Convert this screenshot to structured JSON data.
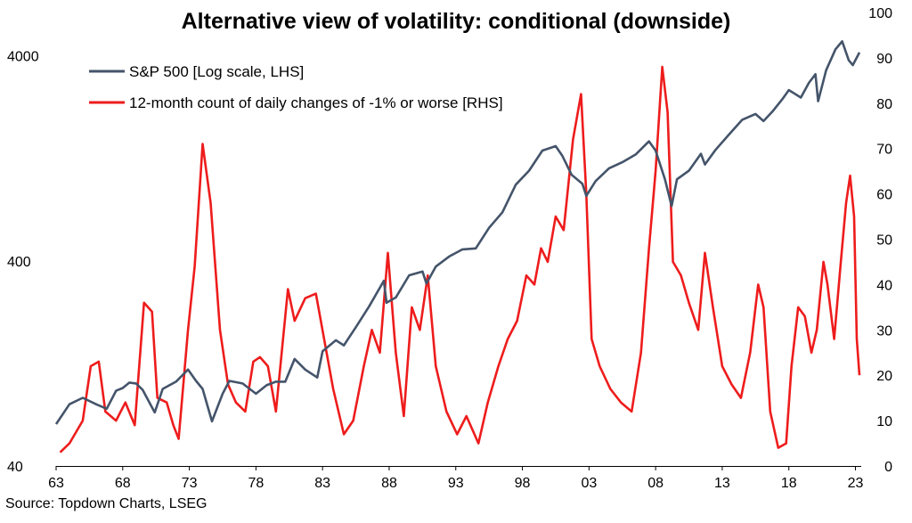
{
  "chart_data": {
    "type": "line",
    "title": "Alternative view of volatility: conditional (downside)",
    "source": "Source: Topdown Charts, LSEG",
    "x_axis": {
      "range": [
        1963,
        2023.3
      ],
      "ticks": [
        1963,
        1968,
        1973,
        1978,
        1983,
        1988,
        1993,
        1998,
        2003,
        2008,
        2013,
        2018,
        2023
      ],
      "tick_labels": [
        "63",
        "68",
        "73",
        "78",
        "83",
        "88",
        "93",
        "98",
        "03",
        "08",
        "13",
        "18",
        "23"
      ]
    },
    "y_left": {
      "scale": "log",
      "range": [
        40,
        6500
      ],
      "ticks": [
        40,
        400,
        4000
      ],
      "tick_labels": [
        "40",
        "400",
        "4000"
      ]
    },
    "y_right": {
      "scale": "linear",
      "range": [
        0,
        100
      ],
      "ticks": [
        0,
        10,
        20,
        30,
        40,
        50,
        60,
        70,
        80,
        90,
        100
      ],
      "tick_labels": [
        "0",
        "10",
        "20",
        "30",
        "40",
        "50",
        "60",
        "70",
        "80",
        "90",
        "100"
      ]
    },
    "legend": {
      "position": "top-left"
    },
    "grid": false,
    "series": [
      {
        "name": "S&P 500 [Log scale, LHS]",
        "color": "#44546a",
        "axis": "left",
        "points": [
          [
            1963.0,
            64
          ],
          [
            1964.0,
            80
          ],
          [
            1965.0,
            86
          ],
          [
            1966.0,
            80
          ],
          [
            1966.8,
            76
          ],
          [
            1967.5,
            93
          ],
          [
            1968.0,
            96
          ],
          [
            1968.5,
            102
          ],
          [
            1969.0,
            101
          ],
          [
            1969.5,
            94
          ],
          [
            1970.4,
            73
          ],
          [
            1971.0,
            95
          ],
          [
            1972.0,
            103
          ],
          [
            1972.9,
            118
          ],
          [
            1973.5,
            104
          ],
          [
            1974.0,
            95
          ],
          [
            1974.7,
            66
          ],
          [
            1975.5,
            90
          ],
          [
            1976.0,
            104
          ],
          [
            1977.0,
            101
          ],
          [
            1978.0,
            90
          ],
          [
            1978.8,
            99
          ],
          [
            1979.5,
            103
          ],
          [
            1980.2,
            103
          ],
          [
            1980.9,
            133
          ],
          [
            1981.7,
            118
          ],
          [
            1982.6,
            108
          ],
          [
            1983.0,
            145
          ],
          [
            1984.0,
            164
          ],
          [
            1984.6,
            155
          ],
          [
            1985.5,
            190
          ],
          [
            1986.5,
            240
          ],
          [
            1987.6,
            320
          ],
          [
            1987.8,
            250
          ],
          [
            1988.5,
            265
          ],
          [
            1989.5,
            340
          ],
          [
            1990.5,
            355
          ],
          [
            1990.8,
            310
          ],
          [
            1991.5,
            375
          ],
          [
            1992.5,
            420
          ],
          [
            1993.5,
            455
          ],
          [
            1994.5,
            460
          ],
          [
            1995.5,
            580
          ],
          [
            1996.5,
            690
          ],
          [
            1997.5,
            940
          ],
          [
            1998.5,
            1100
          ],
          [
            1999.5,
            1380
          ],
          [
            2000.5,
            1450
          ],
          [
            2001.0,
            1300
          ],
          [
            2001.7,
            1050
          ],
          [
            2002.5,
            950
          ],
          [
            2002.8,
            830
          ],
          [
            2003.5,
            980
          ],
          [
            2004.5,
            1130
          ],
          [
            2005.5,
            1210
          ],
          [
            2006.5,
            1320
          ],
          [
            2007.5,
            1530
          ],
          [
            2008.0,
            1380
          ],
          [
            2008.7,
            1000
          ],
          [
            2009.2,
            740
          ],
          [
            2009.6,
            1000
          ],
          [
            2010.5,
            1100
          ],
          [
            2011.4,
            1330
          ],
          [
            2011.7,
            1180
          ],
          [
            2012.5,
            1390
          ],
          [
            2013.5,
            1650
          ],
          [
            2014.5,
            1950
          ],
          [
            2015.5,
            2080
          ],
          [
            2016.1,
            1920
          ],
          [
            2016.8,
            2150
          ],
          [
            2017.5,
            2450
          ],
          [
            2018.0,
            2720
          ],
          [
            2018.9,
            2500
          ],
          [
            2019.5,
            2950
          ],
          [
            2020.0,
            3250
          ],
          [
            2020.2,
            2400
          ],
          [
            2020.8,
            3400
          ],
          [
            2021.5,
            4300
          ],
          [
            2022.0,
            4700
          ],
          [
            2022.5,
            3800
          ],
          [
            2022.8,
            3600
          ],
          [
            2023.3,
            4150
          ]
        ]
      },
      {
        "name": "12-month count of daily changes of -1% or worse [RHS]",
        "color": "#ee1c1c",
        "axis": "right",
        "points": [
          [
            1963.3,
            3
          ],
          [
            1964.0,
            5
          ],
          [
            1965.0,
            10
          ],
          [
            1965.6,
            22
          ],
          [
            1966.2,
            23
          ],
          [
            1966.7,
            12
          ],
          [
            1967.5,
            10
          ],
          [
            1968.2,
            14
          ],
          [
            1968.9,
            9
          ],
          [
            1969.6,
            36
          ],
          [
            1970.2,
            34
          ],
          [
            1970.6,
            15
          ],
          [
            1971.3,
            14
          ],
          [
            1971.8,
            9
          ],
          [
            1972.2,
            6
          ],
          [
            1972.9,
            30
          ],
          [
            1973.4,
            44
          ],
          [
            1974.0,
            71
          ],
          [
            1974.6,
            58
          ],
          [
            1975.3,
            30
          ],
          [
            1975.9,
            18
          ],
          [
            1976.5,
            14
          ],
          [
            1977.2,
            12
          ],
          [
            1977.8,
            23
          ],
          [
            1978.3,
            24
          ],
          [
            1978.9,
            22
          ],
          [
            1979.5,
            12
          ],
          [
            1980.4,
            39
          ],
          [
            1980.9,
            32
          ],
          [
            1981.7,
            37
          ],
          [
            1982.5,
            38
          ],
          [
            1983.3,
            25
          ],
          [
            1983.8,
            17
          ],
          [
            1984.6,
            7
          ],
          [
            1985.3,
            10
          ],
          [
            1986.1,
            22
          ],
          [
            1986.7,
            30
          ],
          [
            1987.3,
            25
          ],
          [
            1987.9,
            47
          ],
          [
            1988.5,
            25
          ],
          [
            1989.1,
            11
          ],
          [
            1989.7,
            35
          ],
          [
            1990.3,
            30
          ],
          [
            1990.9,
            42
          ],
          [
            1991.5,
            22
          ],
          [
            1992.3,
            12
          ],
          [
            1993.1,
            7
          ],
          [
            1993.8,
            11
          ],
          [
            1994.7,
            5
          ],
          [
            1995.4,
            14
          ],
          [
            1996.2,
            22
          ],
          [
            1996.9,
            28
          ],
          [
            1997.6,
            32
          ],
          [
            1998.3,
            42
          ],
          [
            1998.9,
            40
          ],
          [
            1999.4,
            48
          ],
          [
            1999.9,
            45
          ],
          [
            2000.5,
            55
          ],
          [
            2001.1,
            52
          ],
          [
            2001.8,
            72
          ],
          [
            2002.4,
            82
          ],
          [
            2002.8,
            60
          ],
          [
            2003.2,
            28
          ],
          [
            2003.8,
            22
          ],
          [
            2004.6,
            17
          ],
          [
            2005.4,
            14
          ],
          [
            2006.2,
            12
          ],
          [
            2006.9,
            25
          ],
          [
            2007.5,
            48
          ],
          [
            2008.0,
            65
          ],
          [
            2008.5,
            88
          ],
          [
            2008.9,
            78
          ],
          [
            2009.3,
            45
          ],
          [
            2009.9,
            42
          ],
          [
            2010.5,
            36
          ],
          [
            2011.2,
            30
          ],
          [
            2011.7,
            47
          ],
          [
            2012.3,
            35
          ],
          [
            2013.0,
            22
          ],
          [
            2013.7,
            18
          ],
          [
            2014.4,
            15
          ],
          [
            2015.1,
            25
          ],
          [
            2015.7,
            40
          ],
          [
            2016.1,
            35
          ],
          [
            2016.6,
            12
          ],
          [
            2017.2,
            4
          ],
          [
            2017.8,
            5
          ],
          [
            2018.2,
            22
          ],
          [
            2018.7,
            35
          ],
          [
            2019.2,
            33
          ],
          [
            2019.7,
            25
          ],
          [
            2020.1,
            30
          ],
          [
            2020.6,
            45
          ],
          [
            2020.9,
            40
          ],
          [
            2021.4,
            28
          ],
          [
            2021.9,
            45
          ],
          [
            2022.3,
            58
          ],
          [
            2022.6,
            64
          ],
          [
            2022.9,
            55
          ],
          [
            2023.1,
            28
          ],
          [
            2023.3,
            20
          ]
        ]
      }
    ]
  }
}
